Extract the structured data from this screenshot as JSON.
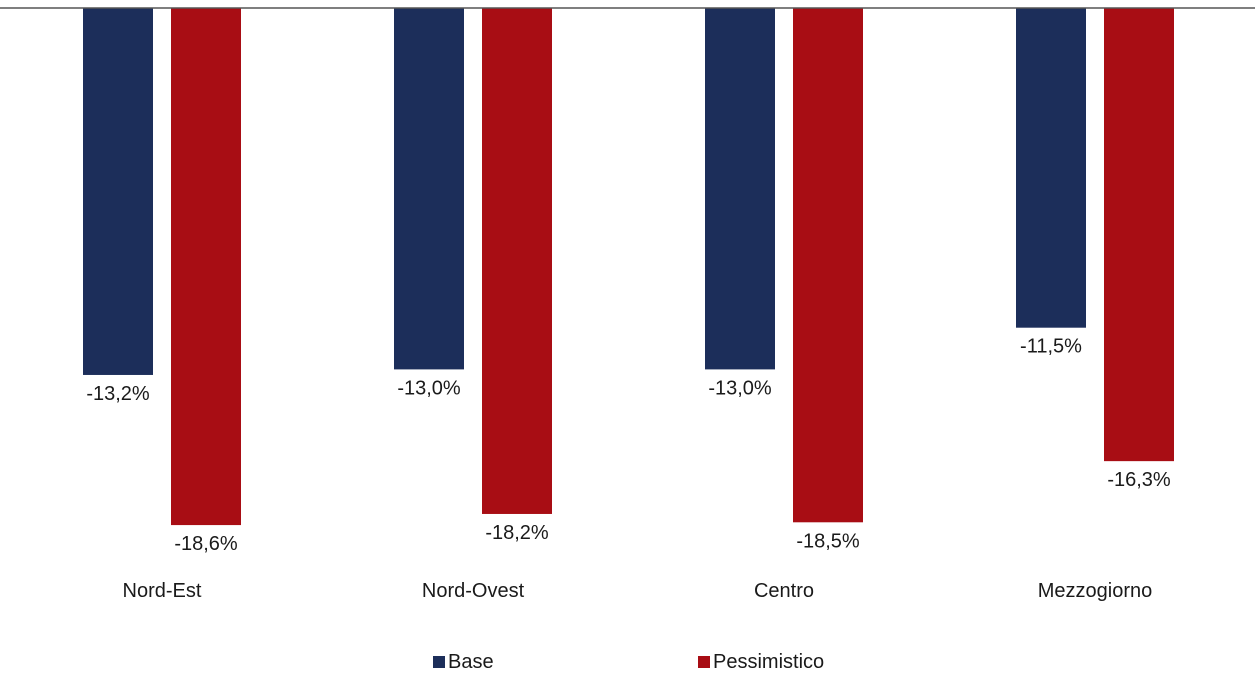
{
  "chart_data": {
    "type": "bar",
    "categories": [
      "Nord-Est",
      "Nord-Ovest",
      "Centro",
      "Mezzogiorno"
    ],
    "series": [
      {
        "name": "Base",
        "color": "#1c2e5a",
        "values": [
          -13.2,
          -13.0,
          -13.0,
          -11.5
        ],
        "labels": [
          "-13,2%",
          "-13,0%",
          "-13,0%",
          "-11,5%"
        ]
      },
      {
        "name": "Pessimistico",
        "color": "#a80d14",
        "values": [
          -18.6,
          -18.2,
          -18.5,
          -16.3
        ],
        "labels": [
          "-18,6%",
          "-18,2%",
          "-18,5%",
          "-16,3%"
        ]
      }
    ],
    "ylim": [
      -20,
      0
    ],
    "grid": false,
    "legend": "bottom"
  }
}
